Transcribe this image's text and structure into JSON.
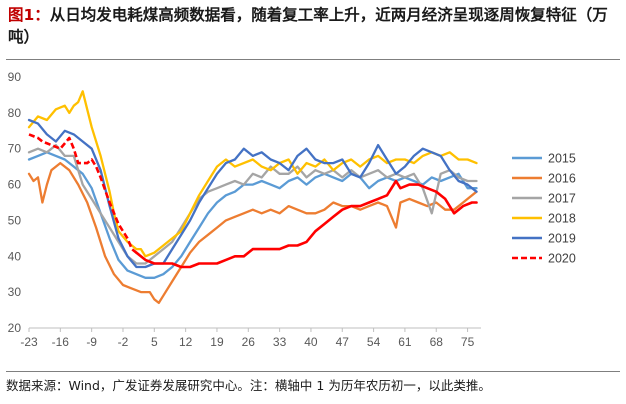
{
  "title_prefix": "图1：",
  "title_text": "从日均发电耗煤高频数据看，随着复工率上升，近两月经济呈现逐周恢复特征（万吨）",
  "source": "数据来源：Wind，广发证券发展研究中心。注：横轴中 1 为历年农历初一，以此类推。",
  "chart_data": {
    "type": "line",
    "ylim": [
      20,
      90
    ],
    "yticks": [
      20,
      30,
      40,
      50,
      60,
      70,
      80,
      90
    ],
    "xlim": [
      -23,
      78
    ],
    "xticks": [
      -23,
      -16,
      -9,
      -2,
      5,
      12,
      19,
      26,
      33,
      40,
      47,
      54,
      61,
      68,
      75
    ],
    "grid": false,
    "legend": "right",
    "series": [
      {
        "name": "2015",
        "color": "#5b9bd5",
        "dashed": false,
        "points": [
          [
            -23,
            67
          ],
          [
            -21,
            68
          ],
          [
            -19,
            69
          ],
          [
            -17,
            68
          ],
          [
            -15,
            67
          ],
          [
            -13,
            65
          ],
          [
            -11,
            63
          ],
          [
            -9,
            59
          ],
          [
            -7,
            52
          ],
          [
            -5,
            45
          ],
          [
            -3,
            39
          ],
          [
            -1,
            36
          ],
          [
            1,
            35
          ],
          [
            3,
            34
          ],
          [
            5,
            34
          ],
          [
            7,
            35
          ],
          [
            9,
            37
          ],
          [
            11,
            40
          ],
          [
            13,
            44
          ],
          [
            15,
            48
          ],
          [
            17,
            52
          ],
          [
            19,
            55
          ],
          [
            21,
            57
          ],
          [
            23,
            58
          ],
          [
            25,
            60
          ],
          [
            27,
            60
          ],
          [
            29,
            61
          ],
          [
            31,
            60
          ],
          [
            33,
            59
          ],
          [
            35,
            61
          ],
          [
            37,
            62
          ],
          [
            39,
            60
          ],
          [
            41,
            62
          ],
          [
            43,
            63
          ],
          [
            45,
            62
          ],
          [
            47,
            61
          ],
          [
            49,
            63
          ],
          [
            51,
            62
          ],
          [
            53,
            59
          ],
          [
            55,
            61
          ],
          [
            57,
            62
          ],
          [
            59,
            61
          ],
          [
            61,
            62
          ],
          [
            63,
            61
          ],
          [
            65,
            60
          ],
          [
            67,
            62
          ],
          [
            69,
            61
          ],
          [
            71,
            62
          ],
          [
            73,
            63
          ],
          [
            75,
            59
          ],
          [
            77,
            59
          ]
        ]
      },
      {
        "name": "2016",
        "color": "#ed7d31",
        "dashed": false,
        "points": [
          [
            -23,
            63
          ],
          [
            -22,
            61
          ],
          [
            -21,
            62
          ],
          [
            -20,
            55
          ],
          [
            -19,
            60
          ],
          [
            -18,
            64
          ],
          [
            -16,
            66
          ],
          [
            -14,
            64
          ],
          [
            -12,
            60
          ],
          [
            -10,
            55
          ],
          [
            -8,
            48
          ],
          [
            -6,
            40
          ],
          [
            -4,
            35
          ],
          [
            -2,
            32
          ],
          [
            0,
            31
          ],
          [
            2,
            30
          ],
          [
            4,
            30
          ],
          [
            5,
            28
          ],
          [
            6,
            27
          ],
          [
            7,
            29
          ],
          [
            9,
            33
          ],
          [
            11,
            37
          ],
          [
            13,
            41
          ],
          [
            15,
            44
          ],
          [
            17,
            46
          ],
          [
            19,
            48
          ],
          [
            21,
            50
          ],
          [
            23,
            51
          ],
          [
            25,
            52
          ],
          [
            27,
            53
          ],
          [
            29,
            52
          ],
          [
            31,
            53
          ],
          [
            33,
            52
          ],
          [
            35,
            54
          ],
          [
            37,
            53
          ],
          [
            39,
            52
          ],
          [
            41,
            52
          ],
          [
            43,
            53
          ],
          [
            45,
            55
          ],
          [
            47,
            54
          ],
          [
            49,
            54
          ],
          [
            51,
            53
          ],
          [
            53,
            54
          ],
          [
            55,
            55
          ],
          [
            57,
            54
          ],
          [
            59,
            48
          ],
          [
            60,
            55
          ],
          [
            62,
            56
          ],
          [
            64,
            55
          ],
          [
            66,
            54
          ],
          [
            68,
            55
          ],
          [
            70,
            53
          ],
          [
            72,
            53
          ],
          [
            74,
            55
          ],
          [
            77,
            58
          ]
        ]
      },
      {
        "name": "2017",
        "color": "#a5a5a5",
        "dashed": false,
        "points": [
          [
            -23,
            69
          ],
          [
            -21,
            70
          ],
          [
            -19,
            69
          ],
          [
            -17,
            71
          ],
          [
            -15,
            68
          ],
          [
            -13,
            68
          ],
          [
            -11,
            60
          ],
          [
            -10,
            58
          ],
          [
            -9,
            56
          ],
          [
            -7,
            52
          ],
          [
            -5,
            48
          ],
          [
            -3,
            44
          ],
          [
            -1,
            40
          ],
          [
            1,
            38
          ],
          [
            3,
            38
          ],
          [
            5,
            40
          ],
          [
            7,
            42
          ],
          [
            9,
            44
          ],
          [
            11,
            48
          ],
          [
            13,
            52
          ],
          [
            15,
            56
          ],
          [
            17,
            58
          ],
          [
            19,
            59
          ],
          [
            21,
            60
          ],
          [
            23,
            61
          ],
          [
            25,
            60
          ],
          [
            27,
            63
          ],
          [
            29,
            62
          ],
          [
            31,
            65
          ],
          [
            33,
            63
          ],
          [
            35,
            63
          ],
          [
            37,
            65
          ],
          [
            39,
            62
          ],
          [
            41,
            64
          ],
          [
            43,
            63
          ],
          [
            45,
            64
          ],
          [
            47,
            62
          ],
          [
            49,
            64
          ],
          [
            51,
            62
          ],
          [
            53,
            63
          ],
          [
            55,
            64
          ],
          [
            57,
            62
          ],
          [
            59,
            63
          ],
          [
            61,
            62
          ],
          [
            63,
            63
          ],
          [
            65,
            59
          ],
          [
            67,
            52
          ],
          [
            69,
            63
          ],
          [
            71,
            64
          ],
          [
            73,
            62
          ],
          [
            75,
            61
          ],
          [
            77,
            61
          ]
        ]
      },
      {
        "name": "2018",
        "color": "#ffc000",
        "dashed": false,
        "points": [
          [
            -23,
            76
          ],
          [
            -21,
            79
          ],
          [
            -19,
            78
          ],
          [
            -17,
            81
          ],
          [
            -15,
            82
          ],
          [
            -14,
            80
          ],
          [
            -13,
            82
          ],
          [
            -12,
            83
          ],
          [
            -11,
            86
          ],
          [
            -10,
            81
          ],
          [
            -9,
            76
          ],
          [
            -7,
            68
          ],
          [
            -5,
            58
          ],
          [
            -4,
            52
          ],
          [
            -3,
            47
          ],
          [
            -1,
            44
          ],
          [
            1,
            42
          ],
          [
            2,
            42
          ],
          [
            3,
            40
          ],
          [
            5,
            41
          ],
          [
            7,
            43
          ],
          [
            9,
            45
          ],
          [
            11,
            47
          ],
          [
            13,
            52
          ],
          [
            15,
            57
          ],
          [
            17,
            61
          ],
          [
            19,
            65
          ],
          [
            21,
            67
          ],
          [
            23,
            65
          ],
          [
            25,
            66
          ],
          [
            27,
            67
          ],
          [
            29,
            65
          ],
          [
            31,
            64
          ],
          [
            33,
            66
          ],
          [
            35,
            67
          ],
          [
            37,
            63
          ],
          [
            39,
            66
          ],
          [
            41,
            65
          ],
          [
            43,
            67
          ],
          [
            45,
            64
          ],
          [
            47,
            66
          ],
          [
            49,
            67
          ],
          [
            51,
            65
          ],
          [
            53,
            67
          ],
          [
            55,
            68
          ],
          [
            57,
            66
          ],
          [
            59,
            67
          ],
          [
            61,
            67
          ],
          [
            63,
            66
          ],
          [
            65,
            68
          ],
          [
            67,
            69
          ],
          [
            69,
            68
          ],
          [
            71,
            69
          ],
          [
            73,
            67
          ],
          [
            75,
            67
          ],
          [
            77,
            66
          ]
        ]
      },
      {
        "name": "2019",
        "color": "#4472c4",
        "dashed": false,
        "points": [
          [
            -23,
            78
          ],
          [
            -21,
            77
          ],
          [
            -19,
            74
          ],
          [
            -17,
            72
          ],
          [
            -15,
            75
          ],
          [
            -13,
            74
          ],
          [
            -11,
            72
          ],
          [
            -9,
            70
          ],
          [
            -7,
            64
          ],
          [
            -5,
            54
          ],
          [
            -3,
            45
          ],
          [
            -1,
            40
          ],
          [
            1,
            37
          ],
          [
            3,
            37
          ],
          [
            5,
            38
          ],
          [
            7,
            38
          ],
          [
            9,
            42
          ],
          [
            11,
            46
          ],
          [
            13,
            50
          ],
          [
            15,
            55
          ],
          [
            17,
            59
          ],
          [
            19,
            63
          ],
          [
            21,
            66
          ],
          [
            23,
            67
          ],
          [
            25,
            70
          ],
          [
            27,
            68
          ],
          [
            29,
            69
          ],
          [
            31,
            67
          ],
          [
            33,
            66
          ],
          [
            35,
            64
          ],
          [
            37,
            68
          ],
          [
            39,
            70
          ],
          [
            41,
            67
          ],
          [
            43,
            66
          ],
          [
            45,
            66
          ],
          [
            47,
            67
          ],
          [
            49,
            63
          ],
          [
            51,
            62
          ],
          [
            53,
            66
          ],
          [
            55,
            71
          ],
          [
            57,
            67
          ],
          [
            59,
            63
          ],
          [
            61,
            65
          ],
          [
            63,
            68
          ],
          [
            65,
            70
          ],
          [
            67,
            69
          ],
          [
            69,
            68
          ],
          [
            71,
            64
          ],
          [
            73,
            61
          ],
          [
            75,
            60
          ],
          [
            77,
            58
          ]
        ]
      },
      {
        "name": "2020",
        "color": "#ff0000",
        "dashed": true,
        "points": [
          [
            -23,
            74
          ],
          [
            -21,
            73
          ],
          [
            -20,
            72
          ],
          [
            -18,
            71
          ],
          [
            -16,
            70
          ],
          [
            -14,
            73
          ],
          [
            -13,
            70
          ],
          [
            -12,
            66
          ],
          [
            -10,
            66
          ],
          [
            -9,
            67
          ],
          [
            -8,
            65
          ],
          [
            -7,
            62
          ],
          [
            -5,
            55
          ],
          [
            -3,
            49
          ],
          [
            -1,
            45
          ],
          [
            0,
            42
          ],
          [
            1,
            41
          ]
        ]
      },
      {
        "name": "",
        "color": "#ff0000",
        "dashed": false,
        "points": [
          [
            1,
            41
          ],
          [
            3,
            39
          ],
          [
            5,
            38
          ],
          [
            7,
            38
          ],
          [
            9,
            38
          ],
          [
            11,
            37
          ],
          [
            13,
            37
          ],
          [
            15,
            38
          ],
          [
            17,
            38
          ],
          [
            19,
            38
          ],
          [
            21,
            39
          ],
          [
            23,
            40
          ],
          [
            25,
            40
          ],
          [
            27,
            42
          ],
          [
            29,
            42
          ],
          [
            31,
            42
          ],
          [
            33,
            42
          ],
          [
            35,
            43
          ],
          [
            37,
            43
          ],
          [
            39,
            44
          ],
          [
            41,
            47
          ],
          [
            43,
            49
          ],
          [
            45,
            51
          ],
          [
            47,
            53
          ],
          [
            49,
            54
          ],
          [
            51,
            54
          ],
          [
            53,
            55
          ],
          [
            55,
            56
          ],
          [
            57,
            57
          ],
          [
            59,
            61
          ],
          [
            60,
            59
          ],
          [
            62,
            60
          ],
          [
            64,
            60
          ],
          [
            66,
            59
          ],
          [
            68,
            58
          ],
          [
            70,
            56
          ],
          [
            72,
            52
          ],
          [
            74,
            54
          ],
          [
            76,
            55
          ],
          [
            77,
            55
          ]
        ]
      }
    ]
  }
}
